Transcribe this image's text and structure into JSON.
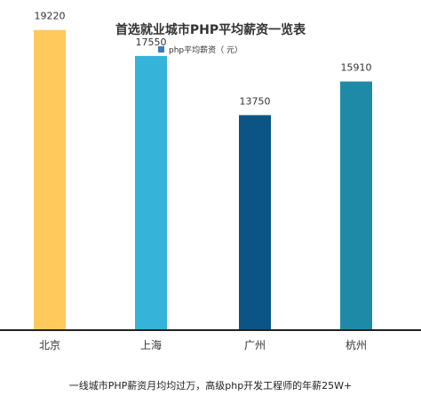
{
  "chart_data": {
    "type": "bar",
    "title": "首选就业城市PHP平均薪资一览表",
    "legend": {
      "label": "php平均薪资（ 元）",
      "color": "#3a7ab8",
      "position": "top"
    },
    "categories": [
      "北京",
      "上海",
      "广州",
      "杭州"
    ],
    "series": [
      {
        "name": "php平均薪资（ 元）",
        "values": [
          19220,
          17550,
          13750,
          15910
        ]
      }
    ],
    "bar_colors": [
      "#ffc95c",
      "#36b3d9",
      "#0a5585",
      "#1f8aa8"
    ],
    "ylim": [
      0,
      20000
    ],
    "grid": false,
    "xlabel": "",
    "ylabel": ""
  },
  "caption": "一线城市PHP薪资月均均过万，高级php开发工程师的年薪25W+"
}
